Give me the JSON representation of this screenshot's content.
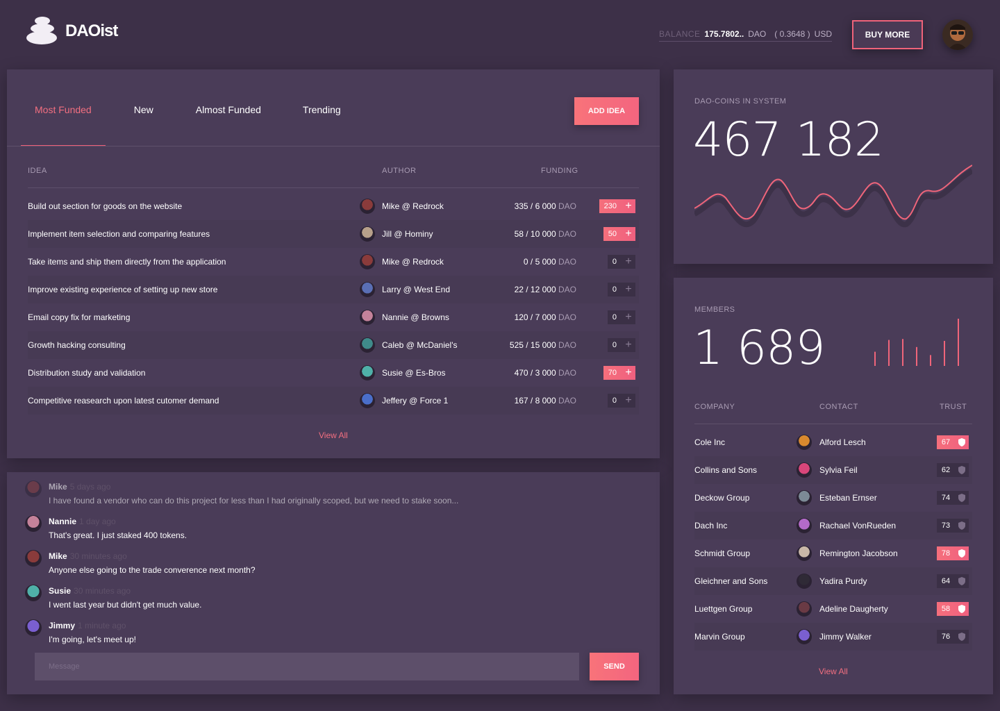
{
  "header": {
    "logo_text": "DAOist",
    "balance_label": "BALANCE",
    "balance_value": "175.7802..",
    "balance_unit": "DAO",
    "usd_value": "( 0.3648 )",
    "usd_unit": "USD",
    "buy_label": "BUY MORE"
  },
  "ideas": {
    "tabs": [
      {
        "label": "Most Funded"
      },
      {
        "label": "New"
      },
      {
        "label": "Almost Funded"
      },
      {
        "label": "Trending"
      }
    ],
    "add_label": "ADD IDEA",
    "columns": {
      "idea": "IDEA",
      "author": "AUTHOR",
      "funding": "FUNDING"
    },
    "rows": [
      {
        "idea": "Build out section for goods on the website",
        "author": "Mike @ Redrock",
        "funding": "335 / 6 000",
        "unit": "DAO",
        "stake": "230",
        "active": true,
        "avatar_color": "#8a3b3b"
      },
      {
        "idea": "Implement item selection and comparing features",
        "author": "Jill @ Hominy",
        "funding": "58 / 10 000",
        "unit": "DAO",
        "stake": "50",
        "active": true,
        "avatar_color": "#b7a08a"
      },
      {
        "idea": "Take items and ship them directly from the application",
        "author": "Mike @ Redrock",
        "funding": "0 / 5 000",
        "unit": "DAO",
        "stake": "0",
        "active": false,
        "avatar_color": "#8a3b3b"
      },
      {
        "idea": "Improve existing experience of setting up new store",
        "author": "Larry @ West End",
        "funding": "22 / 12 000",
        "unit": "DAO",
        "stake": "0",
        "active": false,
        "avatar_color": "#5a6fb5"
      },
      {
        "idea": "Email copy fix for marketing",
        "author": "Nannie @ Browns",
        "funding": "120 / 7 000",
        "unit": "DAO",
        "stake": "0",
        "active": false,
        "avatar_color": "#c4829a"
      },
      {
        "idea": "Growth hacking consulting",
        "author": "Caleb @ McDaniel's",
        "funding": "525 / 15 000",
        "unit": "DAO",
        "stake": "0",
        "active": false,
        "avatar_color": "#3f8a8a"
      },
      {
        "idea": "Distribution study and validation",
        "author": "Susie @ Es-Bros",
        "funding": "470 / 3 000",
        "unit": "DAO",
        "stake": "70",
        "active": true,
        "avatar_color": "#4fb0a8"
      },
      {
        "idea": "Competitive reasearch upon latest cutomer demand",
        "author": "Jeffery @ Force 1",
        "funding": "167 / 8 000",
        "unit": "DAO",
        "stake": "0",
        "active": false,
        "avatar_color": "#4a6ec9"
      }
    ],
    "view_all": "View All"
  },
  "chat": {
    "messages": [
      {
        "name": "Mike",
        "time": "5 days ago",
        "text": "I have found a vendor who can do this project for less than I had originally scoped, but we need to stake soon...",
        "avatar_color": "#8a3b3b",
        "faded": true
      },
      {
        "name": "Nannie",
        "time": "1 day ago",
        "text": "That's great. I just staked 400 tokens.",
        "avatar_color": "#c4829a",
        "faded": false
      },
      {
        "name": "Mike",
        "time": "30 minutes ago",
        "text": "Anyone else going to the trade converence next month?",
        "avatar_color": "#8a3b3b",
        "faded": false
      },
      {
        "name": "Susie",
        "time": "30 minutes ago",
        "text": "I went last year but didn't get much value.",
        "avatar_color": "#4fb0a8",
        "faded": false
      },
      {
        "name": "Jimmy",
        "time": "1 minute ago",
        "text": "I'm going, let's meet up!",
        "avatar_color": "#7a5fd0",
        "faded": false
      }
    ],
    "placeholder": "Message",
    "send_label": "SEND"
  },
  "coins": {
    "label": "DAO-COINS IN SYSTEM",
    "value": "467 182"
  },
  "members": {
    "label": "MEMBERS",
    "value": "1 689",
    "bars": [
      0.3,
      0.55,
      0.57,
      0.4,
      0.23,
      0.53,
      1.0
    ],
    "columns": {
      "company": "COMPANY",
      "contact": "CONTACT",
      "trust": "TRUST"
    },
    "rows": [
      {
        "company": "Cole Inc",
        "contact": "Alford Lesch",
        "trust": "67",
        "active": true,
        "avatar_color": "#d9892e"
      },
      {
        "company": "Collins and Sons",
        "contact": "Sylvia Feil",
        "trust": "62",
        "active": false,
        "avatar_color": "#d9467a"
      },
      {
        "company": "Deckow Group",
        "contact": "Esteban Ernser",
        "trust": "74",
        "active": false,
        "avatar_color": "#7c8a96"
      },
      {
        "company": "Dach Inc",
        "contact": "Rachael VonRueden",
        "trust": "73",
        "active": false,
        "avatar_color": "#b36ac8"
      },
      {
        "company": "Schmidt Group",
        "contact": "Remington Jacobson",
        "trust": "78",
        "active": true,
        "avatar_color": "#c9b8a8"
      },
      {
        "company": "Gleichner and Sons",
        "contact": "Yadira Purdy",
        "trust": "64",
        "active": false,
        "avatar_color": "#2f2a36"
      },
      {
        "company": "Luettgen Group",
        "contact": "Adeline Daugherty",
        "trust": "58",
        "active": true,
        "avatar_color": "#6a3a44"
      },
      {
        "company": "Marvin Group",
        "contact": "Jimmy Walker",
        "trust": "76",
        "active": false,
        "avatar_color": "#7a5fd0"
      }
    ],
    "view_all": "View All"
  }
}
